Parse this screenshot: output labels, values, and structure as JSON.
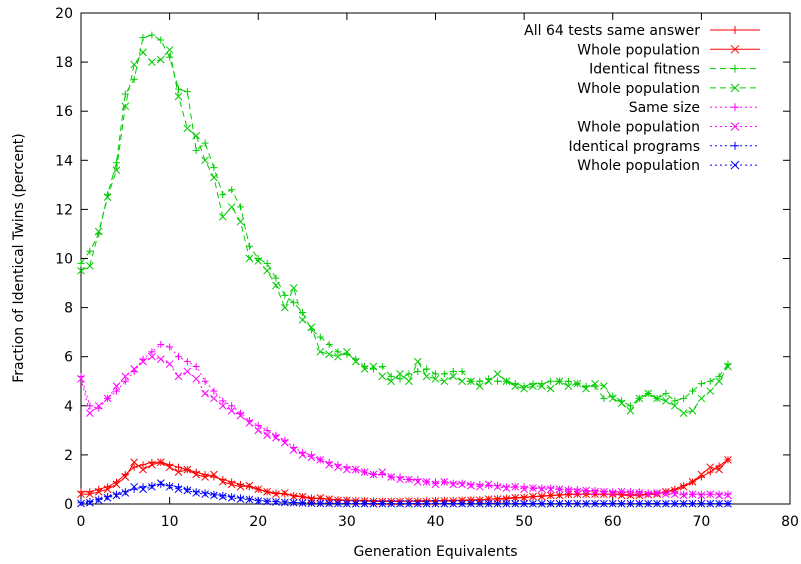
{
  "chart_data": {
    "type": "line",
    "title": "",
    "xlabel": "Generation Equivalents",
    "ylabel": "Fraction of Identical Twins (percent)",
    "xlim": [
      0,
      80
    ],
    "ylim": [
      0,
      20
    ],
    "xticks": [
      0,
      10,
      20,
      30,
      40,
      50,
      60,
      70,
      80
    ],
    "yticks": [
      0,
      2,
      4,
      6,
      8,
      10,
      12,
      14,
      16,
      18,
      20
    ],
    "grid": false,
    "legend_position": "top-right",
    "x": [
      0,
      1,
      2,
      3,
      4,
      5,
      6,
      7,
      8,
      9,
      10,
      11,
      12,
      13,
      14,
      15,
      16,
      17,
      18,
      19,
      20,
      21,
      22,
      23,
      24,
      25,
      26,
      27,
      28,
      29,
      30,
      31,
      32,
      33,
      34,
      35,
      36,
      37,
      38,
      39,
      40,
      41,
      42,
      43,
      44,
      45,
      46,
      47,
      48,
      49,
      50,
      51,
      52,
      53,
      54,
      55,
      56,
      57,
      58,
      59,
      60,
      61,
      62,
      63,
      64,
      65,
      66,
      67,
      68,
      69,
      70,
      71,
      72,
      73
    ],
    "series": [
      {
        "name": "All 64 tests same answer",
        "color": "#ff0000",
        "dash": "solid",
        "marker": "plus",
        "values": [
          0.5,
          0.5,
          0.6,
          0.7,
          0.9,
          1.2,
          1.5,
          1.6,
          1.7,
          1.7,
          1.6,
          1.5,
          1.4,
          1.3,
          1.2,
          1.1,
          1.0,
          0.9,
          0.8,
          0.7,
          0.6,
          0.5,
          0.45,
          0.4,
          0.35,
          0.3,
          0.25,
          0.22,
          0.2,
          0.18,
          0.16,
          0.15,
          0.14,
          0.13,
          0.12,
          0.12,
          0.12,
          0.12,
          0.13,
          0.13,
          0.14,
          0.15,
          0.15,
          0.16,
          0.17,
          0.18,
          0.2,
          0.22,
          0.24,
          0.26,
          0.28,
          0.3,
          0.33,
          0.35,
          0.37,
          0.38,
          0.4,
          0.4,
          0.4,
          0.4,
          0.4,
          0.4,
          0.38,
          0.38,
          0.4,
          0.42,
          0.5,
          0.6,
          0.75,
          0.9,
          1.1,
          1.3,
          1.55,
          1.8
        ]
      },
      {
        "name": "Whole population",
        "color": "#ff0000",
        "dash": "solid",
        "marker": "x",
        "values": [
          0.4,
          0.4,
          0.5,
          0.6,
          0.8,
          1.1,
          1.7,
          1.4,
          1.6,
          1.7,
          1.5,
          1.3,
          1.4,
          1.2,
          1.1,
          1.2,
          0.9,
          0.8,
          0.7,
          0.75,
          0.6,
          0.5,
          0.4,
          0.45,
          0.3,
          0.3,
          0.2,
          0.25,
          0.2,
          0.15,
          0.15,
          0.12,
          0.12,
          0.1,
          0.1,
          0.1,
          0.1,
          0.12,
          0.1,
          0.1,
          0.12,
          0.12,
          0.12,
          0.15,
          0.15,
          0.15,
          0.2,
          0.2,
          0.2,
          0.25,
          0.25,
          0.3,
          0.3,
          0.35,
          0.35,
          0.4,
          0.4,
          0.4,
          0.4,
          0.4,
          0.4,
          0.35,
          0.35,
          0.35,
          0.38,
          0.4,
          0.5,
          0.55,
          0.7,
          0.9,
          1.2,
          1.5,
          1.4,
          1.8
        ]
      },
      {
        "name": "Identical fitness",
        "color": "#00cc00",
        "dash": "dashed",
        "marker": "plus",
        "values": [
          9.8,
          10.3,
          11.0,
          12.6,
          13.9,
          16.7,
          17.3,
          19.0,
          19.1,
          18.9,
          18.2,
          16.9,
          16.8,
          14.4,
          14.7,
          13.7,
          12.6,
          12.8,
          12.1,
          10.5,
          10.0,
          9.8,
          9.2,
          8.5,
          8.2,
          7.8,
          7.1,
          6.8,
          6.5,
          6.2,
          6.1,
          5.9,
          5.6,
          5.5,
          5.6,
          5.2,
          5.1,
          5.3,
          5.4,
          5.5,
          5.3,
          5.3,
          5.4,
          5.4,
          5.0,
          5.0,
          5.1,
          5.0,
          5.0,
          4.9,
          4.8,
          4.9,
          4.9,
          5.0,
          5.0,
          5.0,
          4.9,
          4.8,
          4.8,
          4.3,
          4.4,
          4.2,
          4.0,
          4.3,
          4.5,
          4.3,
          4.5,
          4.2,
          4.3,
          4.6,
          4.9,
          5.0,
          5.2,
          5.7
        ]
      },
      {
        "name": "Whole population",
        "color": "#00cc00",
        "dash": "dashed",
        "marker": "x",
        "values": [
          9.5,
          9.7,
          11.1,
          12.5,
          13.6,
          16.2,
          17.9,
          18.4,
          18.0,
          18.1,
          18.5,
          16.6,
          15.3,
          15.0,
          14.0,
          13.3,
          11.7,
          12.1,
          11.5,
          10.0,
          9.9,
          9.5,
          8.9,
          8.0,
          8.8,
          7.5,
          7.2,
          6.2,
          6.1,
          6.0,
          6.2,
          5.8,
          5.5,
          5.6,
          5.2,
          5.0,
          5.3,
          5.0,
          5.8,
          5.2,
          5.1,
          5.0,
          5.2,
          5.0,
          5.0,
          4.8,
          5.0,
          5.3,
          5.0,
          4.8,
          4.7,
          4.8,
          4.8,
          4.7,
          5.0,
          4.8,
          4.9,
          4.7,
          4.9,
          4.8,
          4.3,
          4.1,
          3.8,
          4.3,
          4.5,
          4.3,
          4.2,
          4.0,
          3.7,
          3.8,
          4.3,
          4.6,
          5.0,
          5.6
        ]
      },
      {
        "name": "Same size",
        "color": "#ff00ff",
        "dash": "dotted",
        "marker": "plus",
        "values": [
          5.2,
          4.0,
          3.9,
          4.3,
          4.6,
          5.0,
          5.4,
          5.9,
          6.2,
          6.5,
          6.4,
          6.0,
          5.8,
          5.6,
          5.0,
          4.6,
          4.2,
          4.0,
          3.7,
          3.4,
          3.2,
          3.0,
          2.8,
          2.6,
          2.3,
          2.1,
          2.0,
          1.8,
          1.7,
          1.6,
          1.5,
          1.4,
          1.3,
          1.2,
          1.2,
          1.1,
          1.1,
          1.0,
          1.0,
          0.9,
          0.9,
          0.9,
          0.85,
          0.85,
          0.8,
          0.8,
          0.75,
          0.75,
          0.7,
          0.7,
          0.7,
          0.65,
          0.65,
          0.65,
          0.6,
          0.6,
          0.6,
          0.55,
          0.55,
          0.5,
          0.5,
          0.5,
          0.5,
          0.5,
          0.45,
          0.45,
          0.45,
          0.45,
          0.4,
          0.4,
          0.4,
          0.4,
          0.4,
          0.4
        ]
      },
      {
        "name": "Whole population",
        "color": "#ff00ff",
        "dash": "dotted",
        "marker": "x",
        "values": [
          5.1,
          3.7,
          4.0,
          4.3,
          4.8,
          5.2,
          5.5,
          5.8,
          6.0,
          5.9,
          5.7,
          5.2,
          5.4,
          5.1,
          4.5,
          4.3,
          4.0,
          3.8,
          3.6,
          3.3,
          3.0,
          2.8,
          2.7,
          2.5,
          2.2,
          2.0,
          1.9,
          1.8,
          1.6,
          1.5,
          1.4,
          1.4,
          1.3,
          1.2,
          1.3,
          1.1,
          1.0,
          1.0,
          0.9,
          0.9,
          0.8,
          0.9,
          0.8,
          0.8,
          0.75,
          0.7,
          0.8,
          0.7,
          0.65,
          0.7,
          0.6,
          0.65,
          0.6,
          0.6,
          0.6,
          0.55,
          0.5,
          0.55,
          0.5,
          0.5,
          0.45,
          0.5,
          0.45,
          0.45,
          0.4,
          0.45,
          0.4,
          0.4,
          0.35,
          0.4,
          0.35,
          0.4,
          0.35,
          0.35
        ]
      },
      {
        "name": "Identical programs",
        "color": "#0000ff",
        "dash": "dotted",
        "marker": "plus",
        "values": [
          0.05,
          0.1,
          0.2,
          0.3,
          0.4,
          0.5,
          0.6,
          0.7,
          0.75,
          0.8,
          0.75,
          0.7,
          0.6,
          0.5,
          0.45,
          0.4,
          0.35,
          0.3,
          0.25,
          0.2,
          0.15,
          0.12,
          0.1,
          0.08,
          0.06,
          0.05,
          0.04,
          0.03,
          0.03,
          0.02,
          0.02,
          0.02,
          0.02,
          0.02,
          0.02,
          0.02,
          0.02,
          0.02,
          0.02,
          0.02,
          0.02,
          0.02,
          0.02,
          0.02,
          0.02,
          0.02,
          0.02,
          0.02,
          0.02,
          0.02,
          0.02,
          0.02,
          0.02,
          0.02,
          0.02,
          0.02,
          0.02,
          0.02,
          0.02,
          0.02,
          0.02,
          0.02,
          0.02,
          0.02,
          0.02,
          0.02,
          0.02,
          0.02,
          0.02,
          0.02,
          0.02,
          0.02,
          0.02,
          0.02
        ]
      },
      {
        "name": "Whole population",
        "color": "#0000ff",
        "dash": "dotted",
        "marker": "x",
        "values": [
          0.02,
          0.05,
          0.15,
          0.25,
          0.35,
          0.45,
          0.7,
          0.6,
          0.7,
          0.85,
          0.7,
          0.6,
          0.55,
          0.45,
          0.4,
          0.35,
          0.3,
          0.25,
          0.2,
          0.18,
          0.12,
          0.1,
          0.08,
          0.06,
          0.05,
          0.04,
          0.03,
          0.02,
          0.02,
          0.02,
          0.01,
          0.01,
          0.01,
          0.01,
          0.01,
          0.01,
          0.01,
          0.01,
          0.01,
          0.01,
          0.01,
          0.01,
          0.01,
          0.01,
          0.01,
          0.01,
          0.01,
          0.01,
          0.01,
          0.01,
          0.01,
          0.01,
          0.01,
          0.01,
          0.01,
          0.01,
          0.01,
          0.01,
          0.01,
          0.01,
          0.01,
          0.01,
          0.01,
          0.01,
          0.01,
          0.01,
          0.01,
          0.01,
          0.01,
          0.01,
          0.01,
          0.01,
          0.01,
          0.01
        ]
      }
    ]
  }
}
